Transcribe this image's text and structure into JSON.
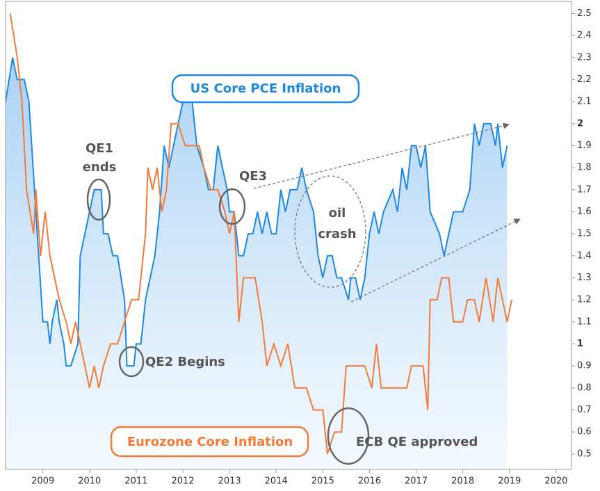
{
  "chart_data": {
    "type": "line",
    "annotations": [
      "QE1",
      "ends",
      "QE2 Begins",
      "QE3",
      "oil",
      "crash",
      "ECB QE approved"
    ],
    "xlim": [
      2008.2,
      2020.33
    ],
    "xticks": [
      2009,
      2010,
      2011,
      2012,
      2013,
      2014,
      2015,
      2016,
      2017,
      2018,
      2019,
      2020
    ],
    "ylim": [
      0.43,
      2.555
    ],
    "yticks": [
      0.5,
      0.6,
      0.7,
      0.8,
      0.9,
      1,
      1.1,
      1.2,
      1.3,
      1.4,
      1.5,
      1.6,
      1.7,
      1.8,
      1.9,
      2,
      2.1,
      2.2,
      2.3,
      2.4,
      2.5
    ],
    "series": [
      {
        "name": "US Core PCE Inflation",
        "color": "#1e88e5",
        "fill": true,
        "x": [
          2008.2,
          2008.35,
          2008.45,
          2008.6,
          2008.7,
          2008.85,
          2009.0,
          2009.1,
          2009.15,
          2009.2,
          2009.3,
          2009.35,
          2009.45,
          2009.5,
          2009.6,
          2009.75,
          2009.8,
          2009.9,
          2010.0,
          2010.1,
          2010.25,
          2010.3,
          2010.4,
          2010.5,
          2010.6,
          2010.75,
          2010.8,
          2010.95,
          2011.0,
          2011.1,
          2011.2,
          2011.3,
          2011.4,
          2011.5,
          2011.6,
          2011.7,
          2011.8,
          2011.9,
          2012.0,
          2012.2,
          2012.3,
          2012.45,
          2012.55,
          2012.65,
          2012.75,
          2012.85,
          2012.95,
          2013.0,
          2013.1,
          2013.2,
          2013.3,
          2013.4,
          2013.5,
          2013.6,
          2013.7,
          2013.8,
          2013.9,
          2014.0,
          2014.1,
          2014.2,
          2014.3,
          2014.45,
          2014.55,
          2014.65,
          2014.8,
          2014.9,
          2015.0,
          2015.1,
          2015.2,
          2015.3,
          2015.4,
          2015.55,
          2015.6,
          2015.7,
          2015.8,
          2015.9,
          2016.0,
          2016.1,
          2016.2,
          2016.3,
          2016.5,
          2016.6,
          2016.7,
          2016.8,
          2016.9,
          2017.0,
          2017.1,
          2017.2,
          2017.3,
          2017.5,
          2017.6,
          2017.8,
          2017.9,
          2018.0,
          2018.15,
          2018.25,
          2018.35,
          2018.45,
          2018.6,
          2018.7,
          2018.75,
          2018.85,
          2018.95
        ],
        "values": [
          2.1,
          2.3,
          2.2,
          2.2,
          2.1,
          1.6,
          1.1,
          1.1,
          1.0,
          1.1,
          1.2,
          1.1,
          1.0,
          0.9,
          0.9,
          1.0,
          1.4,
          1.5,
          1.6,
          1.7,
          1.7,
          1.5,
          1.5,
          1.4,
          1.4,
          1.2,
          0.9,
          0.9,
          1.0,
          1.0,
          1.2,
          1.3,
          1.4,
          1.6,
          1.9,
          1.8,
          1.9,
          2.0,
          2.1,
          2.1,
          1.9,
          1.8,
          1.7,
          1.7,
          1.9,
          1.8,
          1.7,
          1.6,
          1.6,
          1.4,
          1.4,
          1.5,
          1.5,
          1.6,
          1.5,
          1.6,
          1.5,
          1.5,
          1.7,
          1.6,
          1.7,
          1.7,
          1.8,
          1.7,
          1.6,
          1.4,
          1.3,
          1.4,
          1.4,
          1.3,
          1.3,
          1.2,
          1.3,
          1.3,
          1.2,
          1.3,
          1.5,
          1.6,
          1.5,
          1.6,
          1.7,
          1.6,
          1.8,
          1.7,
          1.9,
          1.9,
          1.8,
          1.9,
          1.6,
          1.5,
          1.4,
          1.6,
          1.6,
          1.6,
          1.7,
          2.0,
          1.9,
          2.0,
          2.0,
          1.9,
          2.0,
          1.8,
          1.9
        ]
      },
      {
        "name": "Eurozone Core Inflation",
        "color": "#f47a3a",
        "fill": false,
        "x": [
          2008.3,
          2008.45,
          2008.55,
          2008.65,
          2008.8,
          2008.85,
          2008.95,
          2009.05,
          2009.15,
          2009.25,
          2009.35,
          2009.5,
          2009.6,
          2009.7,
          2009.8,
          2010.0,
          2010.1,
          2010.2,
          2010.3,
          2010.45,
          2010.6,
          2010.75,
          2010.9,
          2011.05,
          2011.2,
          2011.25,
          2011.35,
          2011.45,
          2011.55,
          2011.65,
          2011.75,
          2011.9,
          2012.05,
          2012.2,
          2012.35,
          2012.45,
          2012.6,
          2012.75,
          2012.9,
          2013.0,
          2013.1,
          2013.2,
          2013.3,
          2013.55,
          2013.7,
          2013.8,
          2013.95,
          2014.1,
          2014.25,
          2014.4,
          2014.55,
          2014.65,
          2014.8,
          2015.0,
          2015.1,
          2015.25,
          2015.4,
          2015.5,
          2015.65,
          2015.9,
          2016.05,
          2016.15,
          2016.25,
          2016.4,
          2016.6,
          2016.8,
          2016.9,
          2017.15,
          2017.25,
          2017.3,
          2017.45,
          2017.55,
          2017.7,
          2017.8,
          2018.0,
          2018.1,
          2018.25,
          2018.35,
          2018.5,
          2018.65,
          2018.75,
          2018.85,
          2018.95,
          2019.05
        ],
        "values": [
          2.5,
          2.3,
          2.1,
          1.7,
          1.5,
          1.7,
          1.4,
          1.6,
          1.4,
          1.3,
          1.2,
          1.1,
          1.0,
          1.1,
          1.0,
          0.8,
          0.9,
          0.8,
          0.9,
          1.0,
          1.0,
          1.1,
          1.2,
          1.2,
          1.5,
          1.8,
          1.7,
          1.8,
          1.6,
          1.7,
          2.0,
          2.0,
          1.9,
          1.9,
          1.9,
          1.8,
          1.7,
          1.7,
          1.6,
          1.5,
          1.6,
          1.1,
          1.3,
          1.3,
          1.1,
          0.9,
          1.0,
          0.9,
          1.0,
          0.8,
          0.8,
          0.8,
          0.7,
          0.7,
          0.5,
          0.6,
          0.6,
          0.9,
          0.9,
          0.9,
          0.8,
          1.0,
          0.8,
          0.8,
          0.8,
          0.8,
          0.9,
          0.9,
          0.7,
          1.2,
          1.2,
          1.3,
          1.3,
          1.1,
          1.1,
          1.2,
          1.2,
          1.1,
          1.3,
          1.1,
          1.3,
          1.2,
          1.1,
          1.2
        ]
      }
    ]
  }
}
